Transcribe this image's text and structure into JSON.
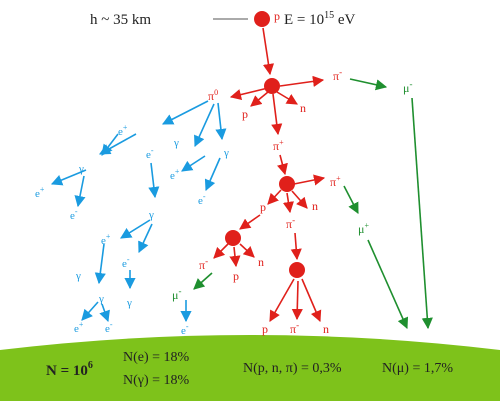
{
  "header": {
    "altitude": "h ~ 35 km",
    "energy_prefix": "E = 10",
    "energy_exp": "15",
    "energy_unit": " eV"
  },
  "colors": {
    "node": "#e0201b",
    "red_track": "#e0201b",
    "blue_track": "#1a9be0",
    "green_track": "#1f8f2f",
    "ground": "#7ec21b",
    "separator": "#555555"
  },
  "particles": {
    "primary": "p",
    "pi0": "π",
    "pi0_sup": "0",
    "pi_minus_top": "π",
    "pi_minus_top_sup": "-",
    "mu_minus_top": "μ",
    "mu_minus_top_sup": "-",
    "p1": "p",
    "n1": "n",
    "pi_plus_1": "π",
    "pi_plus_1_sup": "+",
    "pi_plus_2": "π",
    "pi_plus_2_sup": "+",
    "mu_plus": "μ",
    "mu_plus_sup": "+",
    "p2": "p",
    "n2": "n",
    "pi_minus_2": "π",
    "pi_minus_2_sup": "-",
    "pi_minus_3": "π",
    "pi_minus_3_sup": "-",
    "p3": "p",
    "n3": "n",
    "mu_minus_2": "μ",
    "mu_minus_2_sup": "-",
    "e_minus_end": "e",
    "e_minus_end_sup": "-",
    "p_final": "p",
    "pi_minus_final": "π",
    "pi_minus_final_sup": "-",
    "n_final": "n",
    "em": [
      {
        "t": "e",
        "s": "+"
      },
      {
        "t": "γ",
        "s": ""
      },
      {
        "t": "γ",
        "s": ""
      },
      {
        "t": "e",
        "s": "-"
      },
      {
        "t": "γ",
        "s": ""
      },
      {
        "t": "e",
        "s": "+"
      },
      {
        "t": "e",
        "s": "-"
      },
      {
        "t": "e",
        "s": "+"
      },
      {
        "t": "γ",
        "s": ""
      },
      {
        "t": "e",
        "s": "-"
      },
      {
        "t": "γ",
        "s": ""
      },
      {
        "t": "e",
        "s": "+"
      },
      {
        "t": "e",
        "s": "-"
      },
      {
        "t": "γ",
        "s": ""
      },
      {
        "t": "γ",
        "s": ""
      },
      {
        "t": "e",
        "s": "+"
      },
      {
        "t": "e",
        "s": "-"
      }
    ]
  },
  "ground": {
    "total_label": "N = 10",
    "total_exp": "6",
    "ne": "N(e) = 18%",
    "ngamma": "N(γ) = 18%",
    "nhadron": "N(p, n, π) = 0,3%",
    "nmu": "N(μ) = 1,7%"
  }
}
